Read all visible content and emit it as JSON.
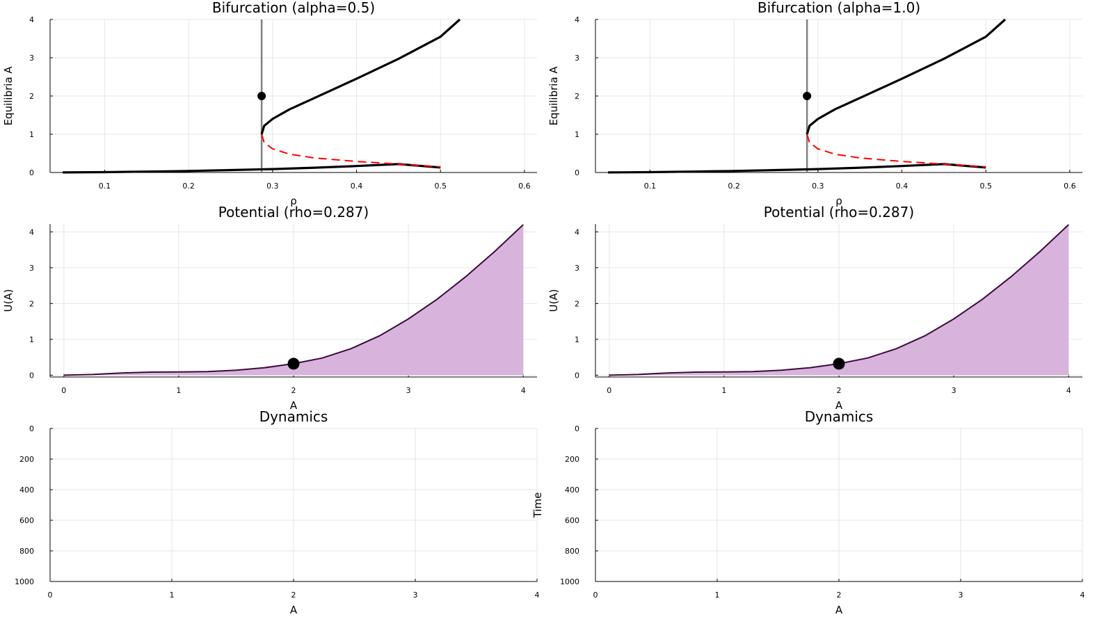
{
  "chart_data": [
    {
      "type": "line",
      "title": "Bifurcation (alpha=0.5)",
      "xlabel": "ρ",
      "ylabel": "Equilibria A",
      "xlim": [
        0.035,
        0.615
      ],
      "ylim": [
        0,
        4
      ],
      "xticks": [
        "0.1",
        "0.2",
        "0.3",
        "0.4",
        "0.5",
        "0.6"
      ],
      "yticks": [
        "0",
        "1",
        "2",
        "3",
        "4"
      ],
      "grid": true,
      "vline": {
        "x": 0.287,
        "color": "#808080"
      },
      "marker": {
        "x": 0.287,
        "y": 2.0
      },
      "series": [
        {
          "style": "stable",
          "color": "#000000",
          "x": [
            0.05,
            0.1,
            0.15,
            0.2,
            0.25,
            0.3,
            0.35,
            0.4,
            0.45,
            0.5
          ],
          "y": [
            0.0025,
            0.01,
            0.023,
            0.04,
            0.063,
            0.09,
            0.125,
            0.17,
            0.22,
            0.13
          ]
        },
        {
          "style": "stable",
          "color": "#000000",
          "x": [
            0.287,
            0.29,
            0.3,
            0.32,
            0.35,
            0.4,
            0.45,
            0.5,
            0.523
          ],
          "y": [
            1.0,
            1.22,
            1.4,
            1.65,
            1.95,
            2.45,
            2.97,
            3.55,
            4.0
          ]
        },
        {
          "style": "unstable",
          "color": "#ff0000",
          "x": [
            0.287,
            0.29,
            0.3,
            0.32,
            0.35,
            0.4,
            0.45,
            0.5
          ],
          "y": [
            1.0,
            0.78,
            0.62,
            0.48,
            0.38,
            0.29,
            0.22,
            0.15
          ]
        }
      ]
    },
    {
      "type": "line",
      "title": "Bifurcation (alpha=1.0)",
      "xlabel": "ρ",
      "ylabel": "Equilibria A",
      "xlim": [
        0.035,
        0.615
      ],
      "ylim": [
        0,
        4
      ],
      "xticks": [
        "0.1",
        "0.2",
        "0.3",
        "0.4",
        "0.5",
        "0.6"
      ],
      "yticks": [
        "0",
        "1",
        "2",
        "3",
        "4"
      ],
      "grid": true,
      "vline": {
        "x": 0.287,
        "color": "#808080"
      },
      "marker": {
        "x": 0.287,
        "y": 2.0
      },
      "series": [
        {
          "style": "stable",
          "color": "#000000",
          "x": [
            0.05,
            0.1,
            0.15,
            0.2,
            0.25,
            0.3,
            0.35,
            0.4,
            0.45,
            0.5
          ],
          "y": [
            0.0025,
            0.01,
            0.023,
            0.04,
            0.063,
            0.09,
            0.125,
            0.17,
            0.22,
            0.13
          ]
        },
        {
          "style": "stable",
          "color": "#000000",
          "x": [
            0.287,
            0.29,
            0.3,
            0.32,
            0.35,
            0.4,
            0.45,
            0.5,
            0.523
          ],
          "y": [
            1.0,
            1.22,
            1.4,
            1.65,
            1.95,
            2.45,
            2.97,
            3.55,
            4.0
          ]
        },
        {
          "style": "unstable",
          "color": "#ff0000",
          "x": [
            0.287,
            0.29,
            0.3,
            0.32,
            0.35,
            0.4,
            0.45,
            0.5
          ],
          "y": [
            1.0,
            0.78,
            0.62,
            0.48,
            0.38,
            0.29,
            0.22,
            0.15
          ]
        }
      ]
    },
    {
      "type": "area",
      "title": "Potential (rho=0.287)",
      "xlabel": "A",
      "ylabel": "U(A)",
      "xlim": [
        -0.12,
        4.12
      ],
      "ylim": [
        -0.05,
        4.22
      ],
      "xticks": [
        "0",
        "1",
        "2",
        "3",
        "4"
      ],
      "yticks": [
        "0",
        "1",
        "2",
        "3",
        "4"
      ],
      "grid": true,
      "fill_color": "#d8b4dc",
      "line_color": "#3d0a3d",
      "marker": {
        "x": 2.0,
        "y": 0.32
      },
      "series": [
        {
          "x": [
            0,
            0.25,
            0.5,
            0.75,
            1.0,
            1.25,
            1.5,
            1.75,
            2.0,
            2.25,
            2.5,
            2.75,
            3.0,
            3.25,
            3.5,
            3.75,
            4.0
          ],
          "y": [
            0,
            0.02,
            0.06,
            0.085,
            0.09,
            0.1,
            0.14,
            0.21,
            0.32,
            0.48,
            0.74,
            1.1,
            1.57,
            2.12,
            2.75,
            3.45,
            4.2
          ]
        }
      ]
    },
    {
      "type": "area",
      "title": "Potential (rho=0.287)",
      "xlabel": "A",
      "ylabel": "U(A)",
      "xlim": [
        -0.12,
        4.12
      ],
      "ylim": [
        -0.05,
        4.22
      ],
      "xticks": [
        "0",
        "1",
        "2",
        "3",
        "4"
      ],
      "yticks": [
        "0",
        "1",
        "2",
        "3",
        "4"
      ],
      "grid": true,
      "fill_color": "#d8b4dc",
      "line_color": "#3d0a3d",
      "marker": {
        "x": 2.0,
        "y": 0.32
      },
      "series": [
        {
          "x": [
            0,
            0.25,
            0.5,
            0.75,
            1.0,
            1.25,
            1.5,
            1.75,
            2.0,
            2.25,
            2.5,
            2.75,
            3.0,
            3.25,
            3.5,
            3.75,
            4.0
          ],
          "y": [
            0,
            0.02,
            0.06,
            0.085,
            0.09,
            0.1,
            0.14,
            0.21,
            0.32,
            0.48,
            0.74,
            1.1,
            1.57,
            2.12,
            2.75,
            3.45,
            4.2
          ]
        }
      ]
    },
    {
      "type": "line",
      "title": "Dynamics",
      "xlabel": "A",
      "ylabel": "",
      "xlim": [
        0,
        4
      ],
      "ylim": [
        1000,
        0
      ],
      "xticks": [
        "0",
        "1",
        "2",
        "3",
        "4"
      ],
      "yticks": [
        "0",
        "200",
        "400",
        "600",
        "800",
        "1000"
      ],
      "grid": true,
      "series": []
    },
    {
      "type": "line",
      "title": "Dynamics",
      "xlabel": "A",
      "ylabel": "Time",
      "xlim": [
        0,
        4
      ],
      "ylim": [
        1000,
        0
      ],
      "xticks": [
        "0",
        "1",
        "2",
        "3",
        "4"
      ],
      "yticks": [
        "0",
        "200",
        "400",
        "600",
        "800",
        "1000"
      ],
      "grid": true,
      "series": []
    }
  ]
}
